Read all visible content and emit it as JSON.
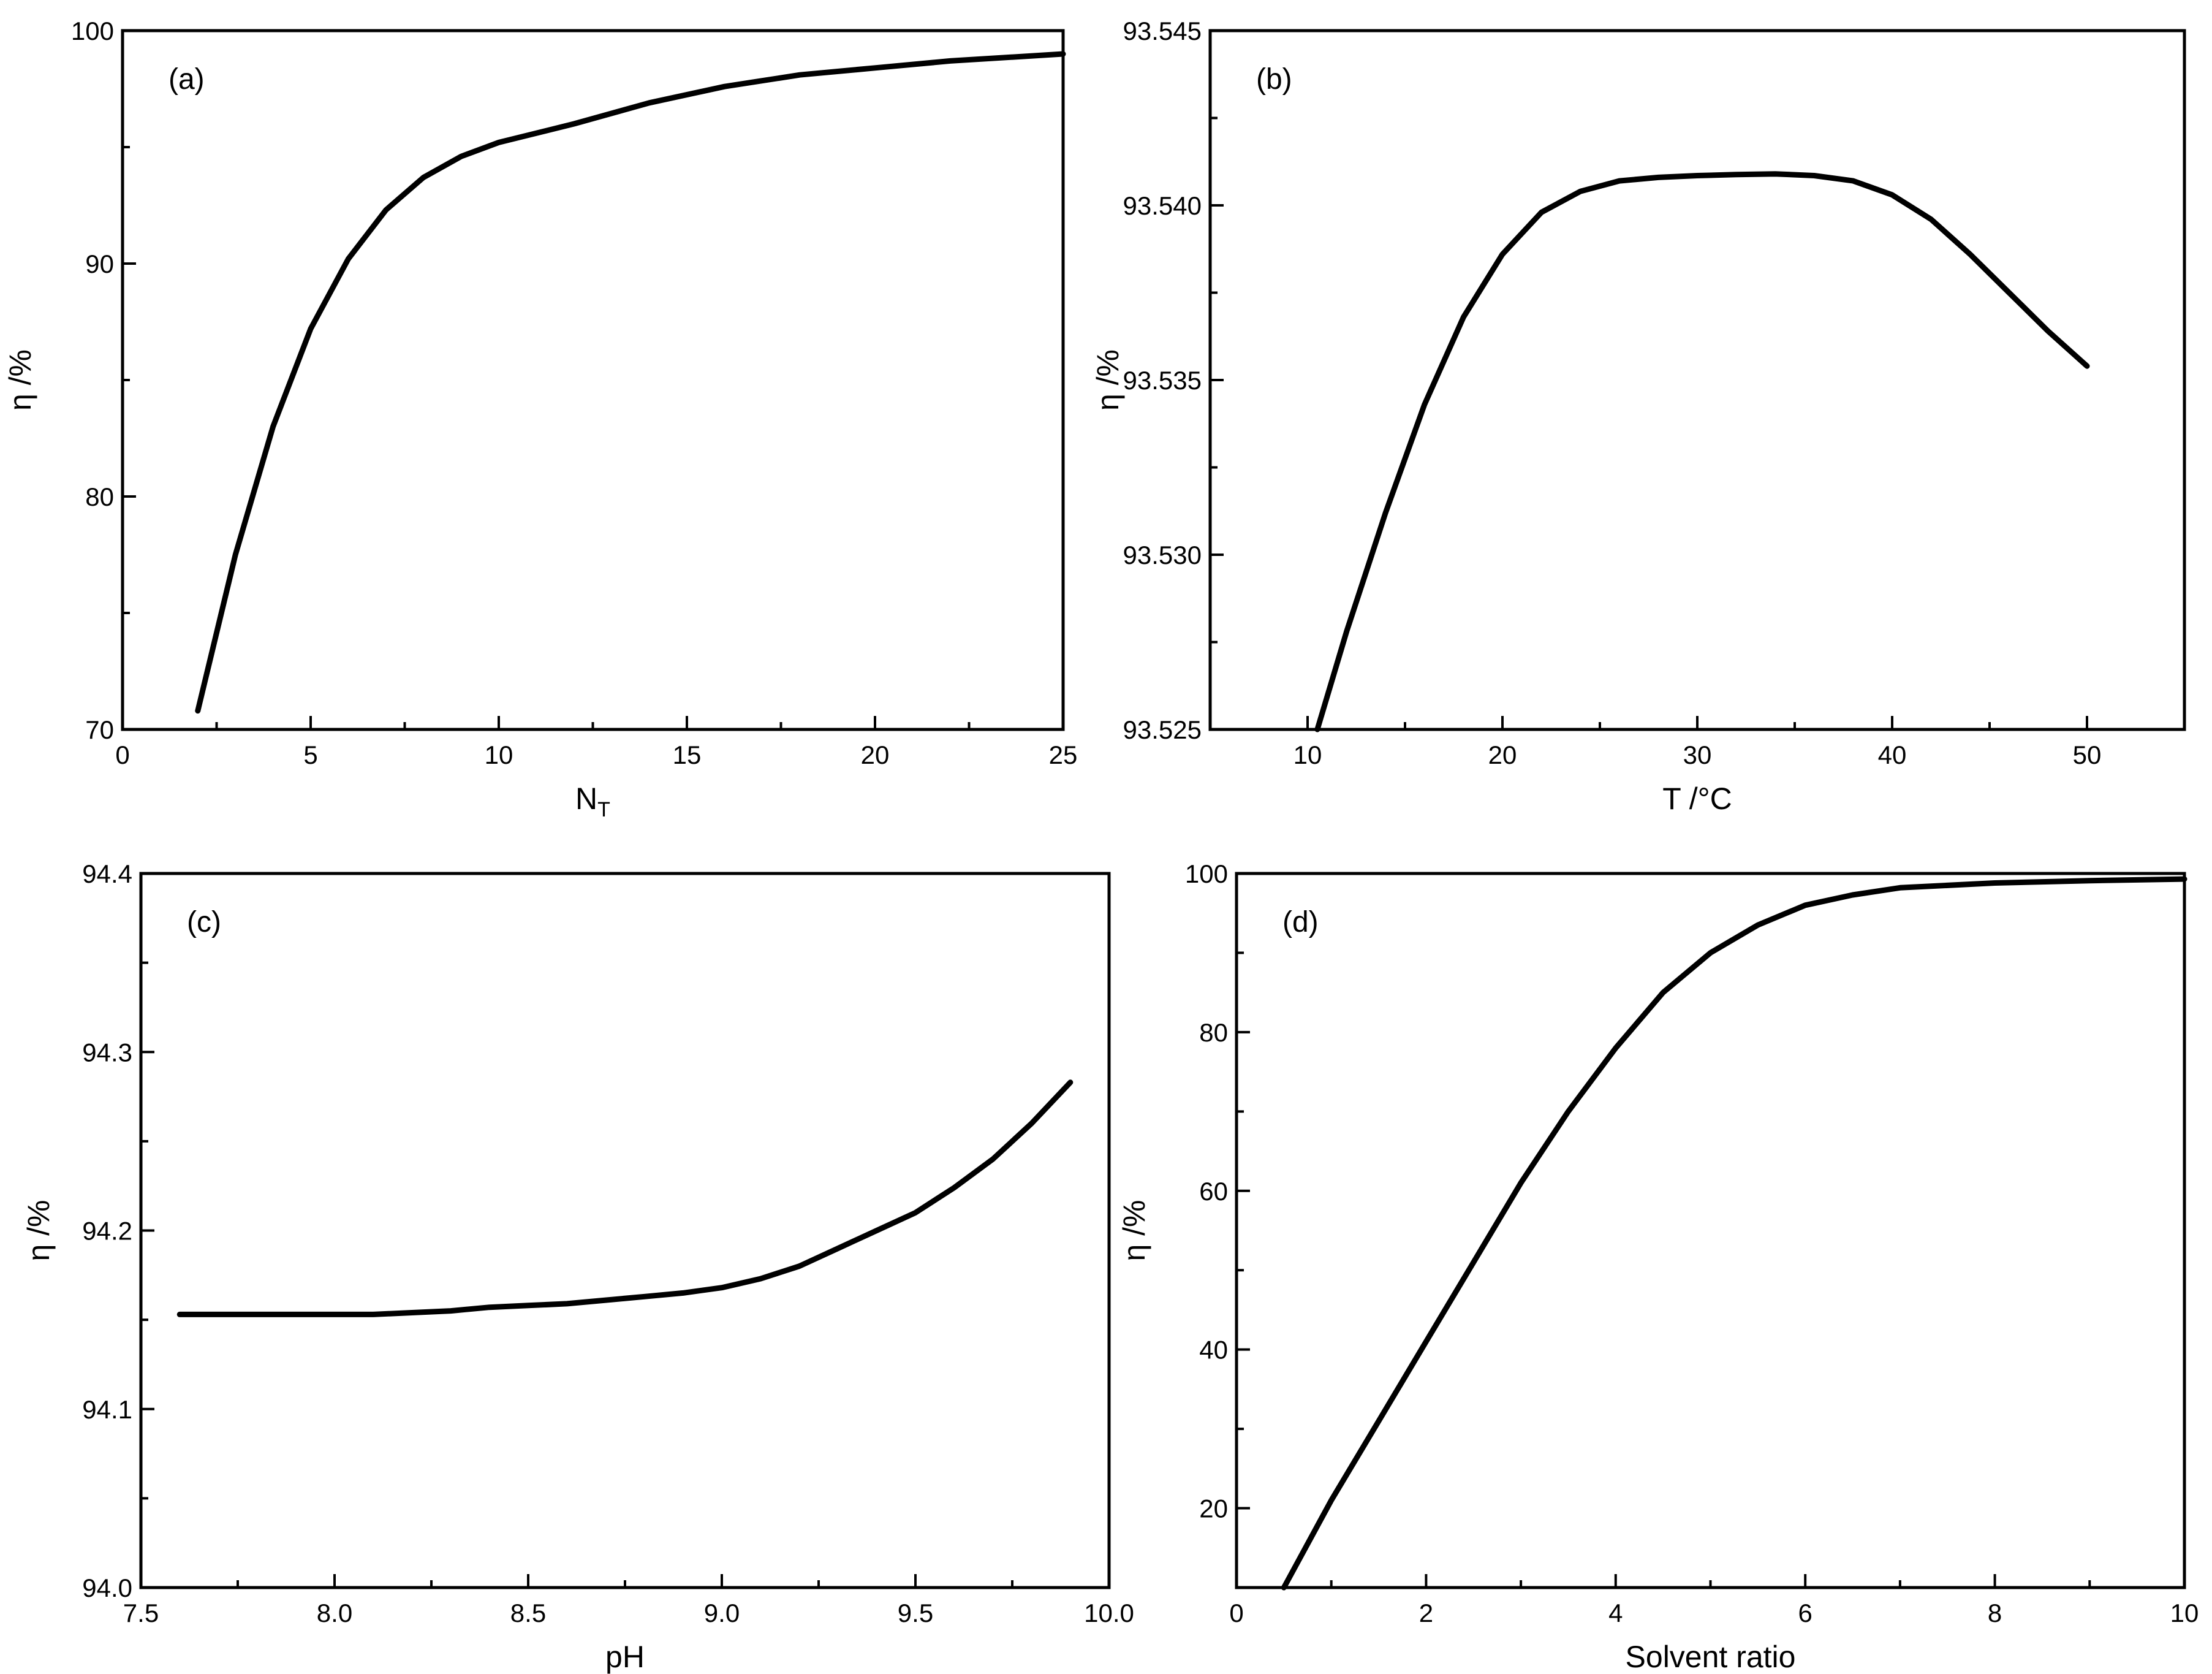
{
  "chart_data": [
    {
      "type": "line",
      "panel_label": "(a)",
      "xlabel": "N",
      "xlabel_sub": "T",
      "ylabel": "η /%",
      "xlim": [
        0,
        25
      ],
      "ylim": [
        70,
        100
      ],
      "x_major_ticks": [
        0,
        5,
        10,
        15,
        20,
        25
      ],
      "x_tick_labels": [
        "0",
        "5",
        "10",
        "15",
        "20",
        "25"
      ],
      "x_minor_ticks": [
        2.5,
        7.5,
        12.5,
        17.5,
        22.5
      ],
      "y_major_ticks": [
        70,
        80,
        90,
        100
      ],
      "y_tick_labels": [
        "70",
        "80",
        "90",
        "100"
      ],
      "y_minor_ticks": [
        75,
        85,
        95
      ],
      "grid": false,
      "legend": "none",
      "series": [
        {
          "x": [
            2,
            3,
            4,
            5,
            6,
            7,
            8,
            9,
            10,
            12,
            14,
            16,
            18,
            20,
            22,
            25
          ],
          "y": [
            70.8,
            77.5,
            83.0,
            87.2,
            90.2,
            92.3,
            93.7,
            94.6,
            95.2,
            96.0,
            96.9,
            97.6,
            98.1,
            98.4,
            98.7,
            99.0
          ]
        }
      ]
    },
    {
      "type": "line",
      "panel_label": "(b)",
      "xlabel": "T  /°C",
      "ylabel": "η /%",
      "xlim": [
        5,
        55
      ],
      "ylim": [
        93.525,
        93.545
      ],
      "x_major_ticks": [
        10,
        20,
        30,
        40,
        50
      ],
      "x_tick_labels": [
        "10",
        "20",
        "30",
        "40",
        "50"
      ],
      "x_minor_ticks": [
        5,
        15,
        25,
        35,
        45,
        55
      ],
      "y_major_ticks": [
        93.525,
        93.53,
        93.535,
        93.54,
        93.545
      ],
      "y_tick_labels": [
        "93.525",
        "93.530",
        "93.535",
        "93.540",
        "93.545"
      ],
      "y_minor_ticks": [
        93.5275,
        93.5325,
        93.5375,
        93.5425
      ],
      "grid": false,
      "legend": "none",
      "series": [
        {
          "x": [
            10.5,
            12,
            14,
            16,
            18,
            20,
            22,
            24,
            26,
            28,
            30,
            32,
            34,
            36,
            38,
            40,
            42,
            44,
            46,
            48,
            50
          ],
          "y": [
            93.525,
            93.5278,
            93.5312,
            93.5343,
            93.5368,
            93.5386,
            93.5398,
            93.5404,
            93.5407,
            93.5408,
            93.54085,
            93.54088,
            93.5409,
            93.54085,
            93.5407,
            93.5403,
            93.5396,
            93.5386,
            93.5375,
            93.5364,
            93.5354
          ]
        }
      ]
    },
    {
      "type": "line",
      "panel_label": "(c)",
      "xlabel": "pH",
      "ylabel": "η /%",
      "xlim": [
        7.5,
        10.0
      ],
      "ylim": [
        94.0,
        94.4
      ],
      "x_major_ticks": [
        7.5,
        8.0,
        8.5,
        9.0,
        9.5,
        10.0
      ],
      "x_tick_labels": [
        "7.5",
        "8.0",
        "8.5",
        "9.0",
        "9.5",
        "10.0"
      ],
      "x_minor_ticks": [
        7.75,
        8.25,
        8.75,
        9.25,
        9.75
      ],
      "y_major_ticks": [
        94.0,
        94.1,
        94.2,
        94.3,
        94.4
      ],
      "y_tick_labels": [
        "94.0",
        "94.1",
        "94.2",
        "94.3",
        "94.4"
      ],
      "y_minor_ticks": [
        94.05,
        94.15,
        94.25,
        94.35
      ],
      "grid": false,
      "legend": "none",
      "series": [
        {
          "x": [
            7.6,
            7.8,
            8.0,
            8.1,
            8.2,
            8.3,
            8.4,
            8.5,
            8.6,
            8.7,
            8.8,
            8.9,
            9.0,
            9.1,
            9.2,
            9.3,
            9.4,
            9.5,
            9.6,
            9.7,
            9.8,
            9.9
          ],
          "y": [
            94.153,
            94.153,
            94.153,
            94.153,
            94.154,
            94.155,
            94.157,
            94.158,
            94.159,
            94.161,
            94.163,
            94.165,
            94.168,
            94.173,
            94.18,
            94.19,
            94.2,
            94.21,
            94.224,
            94.24,
            94.26,
            94.283
          ]
        }
      ]
    },
    {
      "type": "line",
      "panel_label": "(d)",
      "xlabel": "Solvent ratio",
      "ylabel": "η /%",
      "xlim": [
        0,
        10
      ],
      "ylim": [
        10,
        100
      ],
      "x_major_ticks": [
        0,
        2,
        4,
        6,
        8,
        10
      ],
      "x_tick_labels": [
        "0",
        "2",
        "4",
        "6",
        "8",
        "10"
      ],
      "x_minor_ticks": [
        1,
        3,
        5,
        7,
        9
      ],
      "y_major_ticks": [
        20,
        40,
        60,
        80,
        100
      ],
      "y_tick_labels": [
        "20",
        "40",
        "60",
        "80",
        "100"
      ],
      "y_minor_ticks": [
        10,
        30,
        50,
        70,
        90
      ],
      "grid": false,
      "legend": "none",
      "series": [
        {
          "x": [
            0.5,
            1,
            1.5,
            2,
            2.5,
            3,
            3.5,
            4,
            4.5,
            5,
            5.5,
            6,
            6.5,
            7,
            8,
            9,
            10
          ],
          "y": [
            10,
            21,
            31,
            41,
            51,
            61,
            70,
            78,
            85,
            90,
            93.5,
            96,
            97.3,
            98.2,
            98.8,
            99.1,
            99.3
          ]
        }
      ]
    }
  ]
}
